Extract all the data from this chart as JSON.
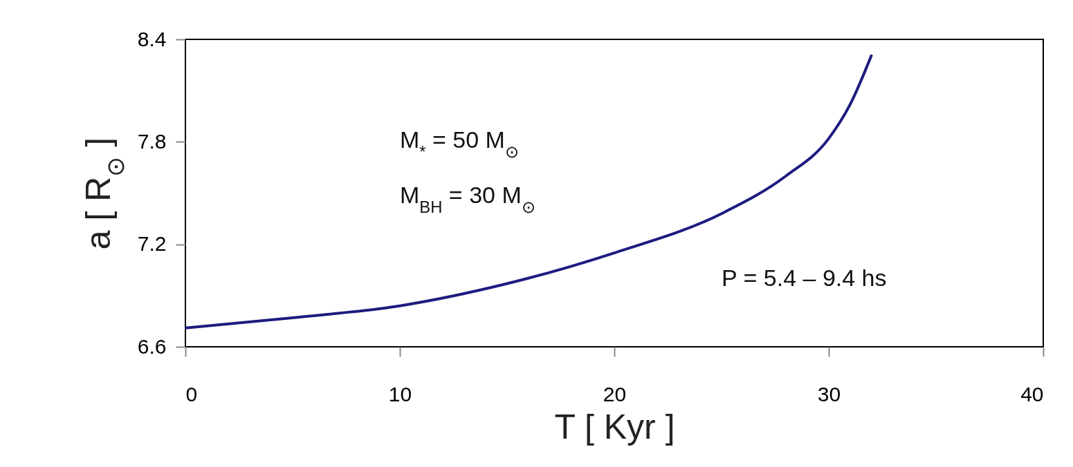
{
  "chart_data": {
    "type": "line",
    "xlabel": "T [ Kyr ]",
    "ylabel": "a [ R$_{⊙}$ ]",
    "x": [
      0,
      5,
      10,
      15,
      20,
      25,
      28,
      30,
      31,
      32
    ],
    "series": [
      {
        "color": "#1c1c80",
        "values": [
          6.71,
          6.77,
          6.84,
          6.97,
          7.15,
          7.38,
          7.6,
          7.82,
          8.02,
          8.31
        ]
      }
    ],
    "xlim": [
      0,
      40
    ],
    "xticks": [
      0,
      10,
      20,
      30,
      40
    ],
    "ylim": [
      6.6,
      8.4
    ],
    "yticks": [
      6.6,
      7.2,
      7.8,
      8.4
    ],
    "grid": false,
    "marker": "none",
    "line_style": "solid",
    "annotations": [
      "M$_{*}$ = 50 M$_{⊙}$",
      "M$_{BH}$ = 30 M$_{⊙}$",
      "P = 5.4 – 9.4 hs"
    ]
  }
}
